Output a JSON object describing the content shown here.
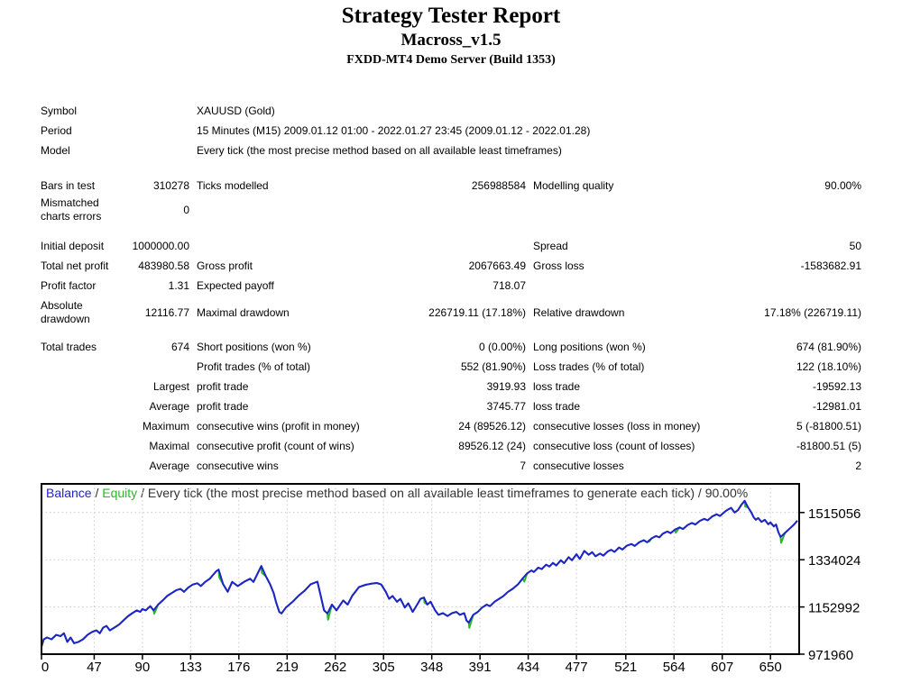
{
  "header": {
    "title": "Strategy Tester Report",
    "expert_name": "Macross_v1.5",
    "server": "FXDD-MT4 Demo Server (Build 1353)"
  },
  "table": {
    "rows": [
      {
        "c1": "Symbol",
        "c2": "",
        "c3": "XAUUSD (Gold)",
        "c4": "",
        "c5": "",
        "c6": "",
        "span3": true,
        "gap": 0,
        "tall": false
      },
      {
        "c1": "Period",
        "c2": "",
        "c3": "15 Minutes (M15) 2009.01.12 01:00 - 2022.01.27 23:45 (2009.01.12 - 2022.01.28)",
        "c4": "",
        "c5": "",
        "c6": "",
        "span3": true,
        "gap": 0,
        "tall": false
      },
      {
        "c1": "Model",
        "c2": "",
        "c3": "Every tick (the most precise method based on all available least timeframes)",
        "c4": "",
        "c5": "",
        "c6": "",
        "span3": true,
        "gap": 0,
        "tall": false
      },
      {
        "c1": "Bars in test",
        "c2": "310278",
        "c3": "Ticks modelled",
        "c4": "256988584",
        "c5": "Modelling quality",
        "c6": "90.00%",
        "span3": false,
        "gap": 15,
        "tall": false
      },
      {
        "c1": "Mismatched charts errors",
        "c2": "0",
        "c3": "",
        "c4": "",
        "c5": "",
        "c6": "",
        "span3": false,
        "gap": 0,
        "tall": true
      },
      {
        "c1": "Initial deposit",
        "c2": "1000000.00",
        "c3": "",
        "c4": "",
        "c5": "Spread",
        "c6": "50",
        "span3": false,
        "gap": 13,
        "tall": false
      },
      {
        "c1": "Total net profit",
        "c2": "483980.58",
        "c3": "Gross profit",
        "c4": "2067663.49",
        "c5": "Gross loss",
        "c6": "-1583682.91",
        "span3": false,
        "gap": 0,
        "tall": false
      },
      {
        "c1": "Profit factor",
        "c2": "1.31",
        "c3": "Expected payoff",
        "c4": "718.07",
        "c5": "",
        "c6": "",
        "span3": false,
        "gap": 0,
        "tall": false
      },
      {
        "c1": "Absolute drawdown",
        "c2": "12116.77",
        "c3": "Maximal drawdown",
        "c4": "226719.11 (17.18%)",
        "c5": "Relative drawdown",
        "c6": "17.18% (226719.11)",
        "span3": false,
        "gap": 3,
        "tall": true
      },
      {
        "c1": "Total trades",
        "c2": "674",
        "c3": "Short positions (won %)",
        "c4": "0 (0.00%)",
        "c5": "Long positions (won %)",
        "c6": "674 (81.90%)",
        "span3": false,
        "gap": 11,
        "tall": false
      },
      {
        "c1": "",
        "c2": "",
        "c3": "Profit trades (% of total)",
        "c4": "552 (81.90%)",
        "c5": "Loss trades (% of total)",
        "c6": "122 (18.10%)",
        "span3": false,
        "gap": 0,
        "tall": false
      },
      {
        "c1": "",
        "c2": "Largest",
        "c3": "profit trade",
        "c4": "3919.93",
        "c5": "loss trade",
        "c6": "-19592.13",
        "span3": false,
        "gap": 0,
        "tall": false
      },
      {
        "c1": "",
        "c2": "Average",
        "c3": "profit trade",
        "c4": "3745.77",
        "c5": "loss trade",
        "c6": "-12981.01",
        "span3": false,
        "gap": 0,
        "tall": false
      },
      {
        "c1": "",
        "c2": "Maximum",
        "c3": "consecutive wins (profit in money)",
        "c4": "24 (89526.12)",
        "c5": "consecutive losses (loss in money)",
        "c6": "5 (-81800.51)",
        "span3": false,
        "gap": 0,
        "tall": false
      },
      {
        "c1": "",
        "c2": "Maximal",
        "c3": "consecutive profit (count of wins)",
        "c4": "89526.12 (24)",
        "c5": "consecutive loss (count of losses)",
        "c6": "-81800.51 (5)",
        "span3": false,
        "gap": 0,
        "tall": false
      },
      {
        "c1": "",
        "c2": "Average",
        "c3": "consecutive wins",
        "c4": "7",
        "c5": "consecutive losses",
        "c6": "2",
        "span3": false,
        "gap": 0,
        "tall": false
      }
    ]
  },
  "chart_data": {
    "type": "line",
    "title_parts": {
      "balance": "Balance",
      "sep1": " / ",
      "equity": "Equity",
      "rest": " / Every tick (the most precise method based on all available least timeframes to generate each tick) / 90.00%"
    },
    "colors": {
      "balance": "#2121CE",
      "equity": "#28B828",
      "title_text": "#333333",
      "grid": "#c9c9c9",
      "border": "#000000"
    },
    "xlabel": "",
    "ylabel": "",
    "xlim": [
      0,
      674
    ],
    "ylim": [
      971960,
      1620000
    ],
    "grid": true,
    "legend_position": "title-inline",
    "x_ticks": [
      0,
      47,
      90,
      133,
      176,
      219,
      262,
      305,
      348,
      391,
      434,
      477,
      521,
      564,
      607,
      650
    ],
    "y_ticks": [
      1515056,
      1334024,
      1152992,
      971960
    ],
    "series": [
      {
        "name": "Balance",
        "points": [
          [
            0,
            1000000
          ],
          [
            2,
            1029000
          ],
          [
            5,
            1036000
          ],
          [
            9,
            1029000
          ],
          [
            13,
            1046000
          ],
          [
            17,
            1041000
          ],
          [
            20,
            1052000
          ],
          [
            23,
            1019000
          ],
          [
            26,
            1036000
          ],
          [
            29,
            1014000
          ],
          [
            33,
            1019000
          ],
          [
            37,
            1029000
          ],
          [
            41,
            1046000
          ],
          [
            45,
            1057000
          ],
          [
            49,
            1063000
          ],
          [
            52,
            1052000
          ],
          [
            55,
            1074000
          ],
          [
            58,
            1080000
          ],
          [
            61,
            1063000
          ],
          [
            65,
            1074000
          ],
          [
            69,
            1085000
          ],
          [
            73,
            1101000
          ],
          [
            77,
            1117000
          ],
          [
            81,
            1129000
          ],
          [
            85,
            1140000
          ],
          [
            88,
            1134000
          ],
          [
            90,
            1145000
          ],
          [
            93,
            1140000
          ],
          [
            97,
            1156000
          ],
          [
            100,
            1140000
          ],
          [
            104,
            1162000
          ],
          [
            108,
            1178000
          ],
          [
            112,
            1195000
          ],
          [
            116,
            1206000
          ],
          [
            120,
            1217000
          ],
          [
            124,
            1222000
          ],
          [
            127,
            1211000
          ],
          [
            131,
            1228000
          ],
          [
            135,
            1239000
          ],
          [
            139,
            1244000
          ],
          [
            142,
            1233000
          ],
          [
            146,
            1249000
          ],
          [
            150,
            1261000
          ],
          [
            152,
            1271000
          ],
          [
            156,
            1291000
          ],
          [
            158,
            1296000
          ],
          [
            162,
            1240000
          ],
          [
            166,
            1211000
          ],
          [
            170,
            1249000
          ],
          [
            175,
            1233000
          ],
          [
            181,
            1250000
          ],
          [
            186,
            1261000
          ],
          [
            189,
            1249000
          ],
          [
            196,
            1310000
          ],
          [
            200,
            1271000
          ],
          [
            204,
            1239000
          ],
          [
            207,
            1206000
          ],
          [
            209,
            1173000
          ],
          [
            212,
            1134000
          ],
          [
            214,
            1128000
          ],
          [
            218,
            1151000
          ],
          [
            224,
            1173000
          ],
          [
            229,
            1195000
          ],
          [
            235,
            1217000
          ],
          [
            240,
            1240000
          ],
          [
            246,
            1250000
          ],
          [
            249,
            1195000
          ],
          [
            252,
            1140000
          ],
          [
            255,
            1128000
          ],
          [
            259,
            1162000
          ],
          [
            263,
            1140000
          ],
          [
            269,
            1178000
          ],
          [
            273,
            1162000
          ],
          [
            277,
            1195000
          ],
          [
            283,
            1229000
          ],
          [
            289,
            1238000
          ],
          [
            294,
            1242000
          ],
          [
            299,
            1245000
          ],
          [
            303,
            1239000
          ],
          [
            307,
            1211000
          ],
          [
            310,
            1184000
          ],
          [
            313,
            1195000
          ],
          [
            317,
            1173000
          ],
          [
            320,
            1184000
          ],
          [
            324,
            1151000
          ],
          [
            327,
            1167000
          ],
          [
            331,
            1134000
          ],
          [
            335,
            1162000
          ],
          [
            338,
            1184000
          ],
          [
            341,
            1189000
          ],
          [
            344,
            1162000
          ],
          [
            347,
            1173000
          ],
          [
            351,
            1140000
          ],
          [
            354,
            1123000
          ],
          [
            358,
            1129000
          ],
          [
            362,
            1118000
          ],
          [
            366,
            1129000
          ],
          [
            370,
            1134000
          ],
          [
            373,
            1123000
          ],
          [
            377,
            1129000
          ],
          [
            379,
            1101000
          ],
          [
            381,
            1093000
          ],
          [
            385,
            1123000
          ],
          [
            389,
            1134000
          ],
          [
            393,
            1151000
          ],
          [
            397,
            1162000
          ],
          [
            400,
            1156000
          ],
          [
            404,
            1173000
          ],
          [
            408,
            1184000
          ],
          [
            412,
            1195000
          ],
          [
            416,
            1211000
          ],
          [
            420,
            1222000
          ],
          [
            425,
            1240000
          ],
          [
            429,
            1262000
          ],
          [
            433,
            1282000
          ],
          [
            437,
            1293000
          ],
          [
            439,
            1287000
          ],
          [
            443,
            1304000
          ],
          [
            446,
            1298000
          ],
          [
            450,
            1315000
          ],
          [
            453,
            1308000
          ],
          [
            456,
            1322000
          ],
          [
            459,
            1312000
          ],
          [
            463,
            1332000
          ],
          [
            466,
            1321000
          ],
          [
            470,
            1344000
          ],
          [
            473,
            1332000
          ],
          [
            477,
            1355000
          ],
          [
            480,
            1337000
          ],
          [
            484,
            1368000
          ],
          [
            488,
            1353000
          ],
          [
            491,
            1363000
          ],
          [
            494,
            1347000
          ],
          [
            498,
            1358000
          ],
          [
            501,
            1350000
          ],
          [
            505,
            1366000
          ],
          [
            508,
            1372000
          ],
          [
            511,
            1364000
          ],
          [
            515,
            1381000
          ],
          [
            518,
            1373000
          ],
          [
            522,
            1388000
          ],
          [
            526,
            1394000
          ],
          [
            529,
            1387000
          ],
          [
            533,
            1401000
          ],
          [
            537,
            1409000
          ],
          [
            540,
            1401000
          ],
          [
            544,
            1416000
          ],
          [
            548,
            1425000
          ],
          [
            551,
            1420000
          ],
          [
            554,
            1434000
          ],
          [
            558,
            1442000
          ],
          [
            561,
            1436000
          ],
          [
            565,
            1450000
          ],
          [
            569,
            1458000
          ],
          [
            572,
            1452000
          ],
          [
            576,
            1467000
          ],
          [
            580,
            1475000
          ],
          [
            583,
            1469000
          ],
          [
            587,
            1483000
          ],
          [
            591,
            1491000
          ],
          [
            594,
            1485000
          ],
          [
            598,
            1500000
          ],
          [
            602,
            1508000
          ],
          [
            605,
            1502000
          ],
          [
            609,
            1517000
          ],
          [
            612,
            1526000
          ],
          [
            615,
            1533000
          ],
          [
            618,
            1515000
          ],
          [
            621,
            1524000
          ],
          [
            624,
            1544000
          ],
          [
            627,
            1560000
          ],
          [
            630,
            1535000
          ],
          [
            633,
            1515000
          ],
          [
            635,
            1497000
          ],
          [
            637,
            1487000
          ],
          [
            639,
            1494000
          ],
          [
            642,
            1479000
          ],
          [
            645,
            1487000
          ],
          [
            648,
            1470000
          ],
          [
            650,
            1477000
          ],
          [
            653,
            1462000
          ],
          [
            655,
            1469000
          ],
          [
            657,
            1440000
          ],
          [
            659,
            1421000
          ],
          [
            663,
            1437000
          ],
          [
            667,
            1453000
          ],
          [
            671,
            1469000
          ],
          [
            674,
            1483981
          ]
        ]
      },
      {
        "name": "Equity",
        "spikes": [
          [
            100.5,
            1127000
          ],
          [
            158.5,
            1266000
          ],
          [
            196.5,
            1284000
          ],
          [
            255.5,
            1104000
          ],
          [
            341.5,
            1170000
          ],
          [
            381.5,
            1073000
          ],
          [
            430.5,
            1250000
          ],
          [
            542,
            1404000
          ],
          [
            565.5,
            1438000
          ],
          [
            627.5,
            1538000
          ],
          [
            659.5,
            1399000
          ]
        ]
      }
    ]
  }
}
